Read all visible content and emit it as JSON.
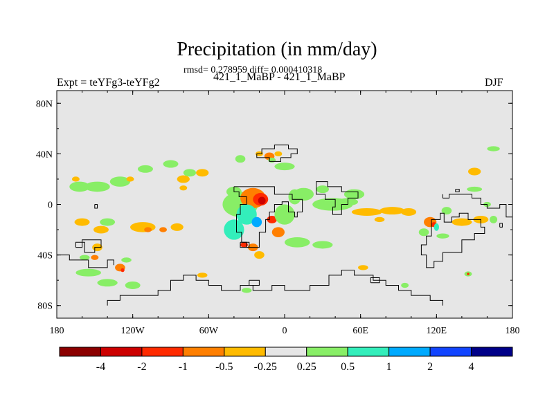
{
  "chart_data": {
    "type": "heatmap",
    "title": "Precipitation (in mm/day)",
    "subtitle": "rmsd= 0.278959 diff= 0.000410318",
    "left_label": "Expt = teYFg3-teYFg2",
    "center_label": "421_1_MaBP - 421_1_MaBP",
    "right_label": "DJF",
    "x_ticks": [
      "180",
      "120W",
      "60W",
      "0",
      "60E",
      "120E",
      "180"
    ],
    "y_ticks": [
      "80N",
      "40N",
      "0",
      "40S",
      "80S"
    ],
    "xlim": [
      -180,
      180
    ],
    "ylim": [
      -90,
      90
    ],
    "colorbar": {
      "colors": [
        "#8b0000",
        "#cc0000",
        "#ff2a00",
        "#ff7f00",
        "#ffbb00",
        "#e6e6e6",
        "#88ee66",
        "#33eebb",
        "#00aaff",
        "#1144ff",
        "#000088"
      ],
      "labels": [
        "-4",
        "-2",
        "-1",
        "-0.5",
        "-0.25",
        "0.25",
        "0.5",
        "1",
        "2",
        "4"
      ]
    },
    "anomaly_patches": [
      {
        "lon": -162,
        "lat": 14,
        "rlon": 8,
        "rlat": 4,
        "level": 0.5
      },
      {
        "lon": -148,
        "lat": 14,
        "rlon": 10,
        "rlat": 4,
        "level": 0.5
      },
      {
        "lon": -130,
        "lat": 18,
        "rlon": 8,
        "rlat": 4,
        "level": 0.5
      },
      {
        "lon": -110,
        "lat": 28,
        "rlon": 6,
        "rlat": 3,
        "level": 0.5
      },
      {
        "lon": -90,
        "lat": 32,
        "rlon": 6,
        "rlat": 3,
        "level": 0.5
      },
      {
        "lon": -75,
        "lat": 25,
        "rlon": 5,
        "rlat": 3,
        "level": 0.5
      },
      {
        "lon": -165,
        "lat": 20,
        "rlon": 3,
        "rlat": 2,
        "level": -0.25
      },
      {
        "lon": -122,
        "lat": 20,
        "rlon": 3,
        "rlat": 2,
        "level": -0.25
      },
      {
        "lon": -80,
        "lat": 20,
        "rlon": 5,
        "rlat": 3,
        "level": -0.25
      },
      {
        "lon": -65,
        "lat": 25,
        "rlon": 5,
        "rlat": 3,
        "level": -0.25
      },
      {
        "lon": -80,
        "lat": 13,
        "rlon": 3,
        "rlat": 2,
        "level": -0.25
      },
      {
        "lon": -160,
        "lat": -14,
        "rlon": 6,
        "rlat": 3,
        "level": -0.25
      },
      {
        "lon": -145,
        "lat": -20,
        "rlon": 6,
        "rlat": 3,
        "level": -0.25
      },
      {
        "lon": -112,
        "lat": -18,
        "rlon": 10,
        "rlat": 4,
        "level": -0.25
      },
      {
        "lon": -108,
        "lat": -20,
        "rlon": 3,
        "rlat": 2,
        "level": -0.5
      },
      {
        "lon": -96,
        "lat": -20,
        "rlon": 3,
        "rlat": 2,
        "level": -0.5
      },
      {
        "lon": -85,
        "lat": -18,
        "rlon": 5,
        "rlat": 3,
        "level": -0.25
      },
      {
        "lon": -140,
        "lat": -14,
        "rlon": 6,
        "rlat": 3,
        "level": 0.5
      },
      {
        "lon": -148,
        "lat": -34,
        "rlon": 4,
        "rlat": 3,
        "level": -0.25
      },
      {
        "lon": -130,
        "lat": -50,
        "rlon": 4,
        "rlat": 3,
        "level": -0.5
      },
      {
        "lon": -128,
        "lat": -52,
        "rlon": 1.5,
        "rlat": 1.5,
        "level": -1
      },
      {
        "lon": -155,
        "lat": -54,
        "rlon": 10,
        "rlat": 3,
        "level": 0.5
      },
      {
        "lon": -140,
        "lat": -62,
        "rlon": 8,
        "rlat": 3,
        "level": 0.5
      },
      {
        "lon": -120,
        "lat": -64,
        "rlon": 6,
        "rlat": 3,
        "level": 0.5
      },
      {
        "lon": -125,
        "lat": -44,
        "rlon": 4,
        "rlat": 2,
        "level": 0.5
      },
      {
        "lon": -158,
        "lat": -42,
        "rlon": 4,
        "rlat": 2,
        "level": 0.5
      },
      {
        "lon": -150,
        "lat": -42,
        "rlon": 3,
        "rlat": 2,
        "level": -0.5
      },
      {
        "lon": -35,
        "lat": 36,
        "rlon": 4,
        "rlat": 3,
        "level": 0.5
      },
      {
        "lon": -20,
        "lat": 40,
        "rlon": 3,
        "rlat": 2,
        "level": -0.25
      },
      {
        "lon": -12,
        "lat": 38,
        "rlon": 4,
        "rlat": 3,
        "level": -0.5
      },
      {
        "lon": -10,
        "lat": 35,
        "rlon": 3,
        "rlat": 2,
        "level": 0.5
      },
      {
        "lon": -5,
        "lat": 40,
        "rlon": 3,
        "rlat": 2,
        "level": -0.25
      },
      {
        "lon": -35,
        "lat": 0,
        "rlon": 14,
        "rlat": 10,
        "level": 0.5
      },
      {
        "lon": -25,
        "lat": 5,
        "rlon": 10,
        "rlat": 8,
        "level": -0.5
      },
      {
        "lon": -19,
        "lat": 4,
        "rlon": 6,
        "rlat": 5,
        "level": -1
      },
      {
        "lon": -18,
        "lat": 3,
        "rlon": 3,
        "rlat": 3,
        "level": -2
      },
      {
        "lon": -30,
        "lat": -8,
        "rlon": 8,
        "rlat": 8,
        "level": 1
      },
      {
        "lon": -22,
        "lat": -14,
        "rlon": 4,
        "rlat": 4,
        "level": 2
      },
      {
        "lon": -40,
        "lat": -20,
        "rlon": 8,
        "rlat": 8,
        "level": 1
      },
      {
        "lon": -10,
        "lat": -12,
        "rlon": 4,
        "rlat": 3,
        "level": -1
      },
      {
        "lon": -5,
        "lat": -22,
        "rlon": 5,
        "rlat": 4,
        "level": -0.5
      },
      {
        "lon": 0,
        "lat": -8,
        "rlon": 8,
        "rlat": 8,
        "level": 0.5
      },
      {
        "lon": 8,
        "lat": 6,
        "rlon": 5,
        "rlat": 6,
        "level": 0.5
      },
      {
        "lon": 15,
        "lat": 8,
        "rlon": 8,
        "rlat": 5,
        "level": 0.5
      },
      {
        "lon": -40,
        "lat": 10,
        "rlon": 6,
        "rlat": 4,
        "level": 0.5
      },
      {
        "lon": 10,
        "lat": -30,
        "rlon": 10,
        "rlat": 4,
        "level": 0.5
      },
      {
        "lon": -25,
        "lat": -34,
        "rlon": 4,
        "rlat": 3,
        "level": -0.5
      },
      {
        "lon": -32,
        "lat": -32,
        "rlon": 3,
        "rlat": 2,
        "level": -1
      },
      {
        "lon": -20,
        "lat": -40,
        "rlon": 4,
        "rlat": 3,
        "level": -0.25
      },
      {
        "lon": 38,
        "lat": 0,
        "rlon": 16,
        "rlat": 5,
        "level": 0.5
      },
      {
        "lon": 55,
        "lat": 8,
        "rlon": 8,
        "rlat": 4,
        "level": 0.5
      },
      {
        "lon": 30,
        "lat": 12,
        "rlon": 5,
        "rlat": 3,
        "level": 0.5
      },
      {
        "lon": 65,
        "lat": -6,
        "rlon": 12,
        "rlat": 3,
        "level": -0.25
      },
      {
        "lon": 85,
        "lat": -5,
        "rlon": 10,
        "rlat": 3,
        "level": -0.25
      },
      {
        "lon": 98,
        "lat": -6,
        "rlon": 6,
        "rlat": 3,
        "level": -0.25
      },
      {
        "lon": 50,
        "lat": 2,
        "rlon": 8,
        "rlat": 3,
        "level": 0.5
      },
      {
        "lon": 75,
        "lat": -12,
        "rlon": 4,
        "rlat": 2,
        "level": -0.25
      },
      {
        "lon": 115,
        "lat": -14,
        "rlon": 5,
        "rlat": 4,
        "level": -0.5
      },
      {
        "lon": 118,
        "lat": -16,
        "rlon": 2,
        "rlat": 2,
        "level": -1
      },
      {
        "lon": 120,
        "lat": -18,
        "rlon": 2,
        "rlat": 3,
        "level": 1
      },
      {
        "lon": 128,
        "lat": -5,
        "rlon": 4,
        "rlat": 3,
        "level": 0.5
      },
      {
        "lon": 140,
        "lat": -14,
        "rlon": 8,
        "rlat": 3,
        "level": -0.25
      },
      {
        "lon": 155,
        "lat": -12,
        "rlon": 6,
        "rlat": 3,
        "level": -0.25
      },
      {
        "lon": 165,
        "lat": -12,
        "rlon": 3,
        "rlat": 3,
        "level": 0.5
      },
      {
        "lon": 160,
        "lat": 0,
        "rlon": 3,
        "rlat": 2,
        "level": 0.5
      },
      {
        "lon": 150,
        "lat": 26,
        "rlon": 5,
        "rlat": 3,
        "level": -0.25
      },
      {
        "lon": 165,
        "lat": 44,
        "rlon": 5,
        "rlat": 2,
        "level": 0.5
      },
      {
        "lon": 110,
        "lat": -22,
        "rlon": 4,
        "rlat": 3,
        "level": 0.5
      },
      {
        "lon": 125,
        "lat": -25,
        "rlon": 5,
        "rlat": 2,
        "level": 0.5
      },
      {
        "lon": 30,
        "lat": -32,
        "rlon": 8,
        "rlat": 3,
        "level": 0.5
      },
      {
        "lon": 62,
        "lat": -50,
        "rlon": 4,
        "rlat": 2,
        "level": -0.25
      },
      {
        "lon": -65,
        "lat": -56,
        "rlon": 4,
        "rlat": 2,
        "level": -0.25
      },
      {
        "lon": -30,
        "lat": -68,
        "rlon": 4,
        "rlat": 2,
        "level": 0.5
      },
      {
        "lon": 95,
        "lat": -64,
        "rlon": 3,
        "rlat": 2,
        "level": 0.5
      },
      {
        "lon": 145,
        "lat": -55,
        "rlon": 3,
        "rlat": 2,
        "level": 0.5
      },
      {
        "lon": 145,
        "lat": -55,
        "rlon": 1,
        "rlat": 1,
        "level": -1
      },
      {
        "lon": 150,
        "lat": 12,
        "rlon": 6,
        "rlat": 2,
        "level": 0.5
      },
      {
        "lon": 0,
        "lat": 30,
        "rlon": 8,
        "rlat": 3,
        "level": 0.5
      }
    ]
  }
}
